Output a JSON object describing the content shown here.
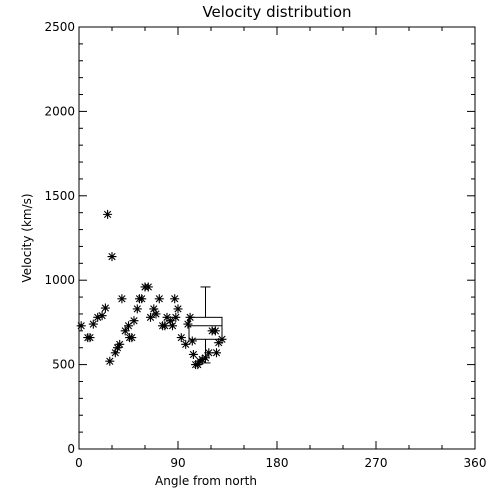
{
  "chart_data": {
    "type": "scatter",
    "title": "Velocity distribution",
    "xlabel": "Angle from north",
    "ylabel": "Velocity (km/s)",
    "xlim": [
      0,
      360
    ],
    "ylim": [
      0,
      2500
    ],
    "xticks": [
      0,
      90,
      180,
      270,
      360
    ],
    "yticks": [
      0,
      500,
      1000,
      1500,
      2000,
      2500
    ],
    "xtick_labels": [
      "0",
      "90",
      "180",
      "270",
      "360"
    ],
    "ytick_labels": [
      "0",
      "500",
      "1000",
      "1500",
      "2000",
      "2500"
    ],
    "grid": false,
    "marker": "asterisk",
    "series": [
      {
        "x": [
          2,
          8,
          10,
          13,
          17,
          21,
          24,
          26,
          28,
          30,
          33,
          35,
          37,
          39,
          42,
          45,
          46,
          48,
          50,
          53,
          55,
          57,
          60,
          63,
          65,
          68,
          70,
          73,
          76,
          78,
          80,
          83,
          85,
          87,
          88,
          90,
          93,
          97,
          99,
          101,
          103,
          104,
          106,
          108,
          110,
          112,
          115,
          118,
          121,
          124,
          125,
          127,
          130
        ],
        "y": [
          730,
          660,
          660,
          740,
          780,
          790,
          835,
          1390,
          520,
          1140,
          570,
          600,
          620,
          890,
          700,
          730,
          660,
          660,
          760,
          830,
          890,
          890,
          960,
          960,
          780,
          830,
          800,
          890,
          730,
          730,
          780,
          760,
          730,
          890,
          780,
          830,
          660,
          620,
          740,
          780,
          640,
          560,
          500,
          500,
          520,
          530,
          540,
          570,
          700,
          700,
          570,
          630,
          650
        ]
      }
    ],
    "boxplot": {
      "x": 115,
      "x_range": [
        100,
        130
      ],
      "min": 510,
      "q1": 650,
      "median": 730,
      "q3": 780,
      "max": 960
    }
  }
}
